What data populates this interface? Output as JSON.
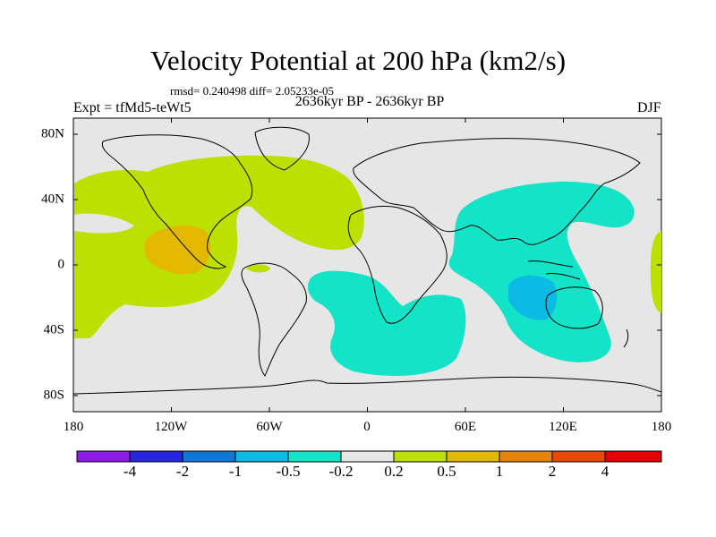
{
  "header": {
    "title": "Velocity Potential at 200 hPa (km2/s)",
    "stats": "rmsd= 0.240498 diff= 2.05233e-05",
    "period": "2636kyr BP - 2636kyr BP",
    "experiment": "Expt = tfMd5-teWt5",
    "season": "DJF"
  },
  "axes": {
    "x_ticks": [
      "180",
      "120W",
      "60W",
      "0",
      "60E",
      "120E",
      "180"
    ],
    "y_ticks": [
      "80N",
      "40N",
      "0",
      "40S",
      "80S"
    ],
    "lon_range": [
      -180,
      180
    ],
    "lat_range": [
      -90,
      90
    ]
  },
  "colorbar": {
    "colors": [
      "#8d1ae6",
      "#2626e0",
      "#0e78d8",
      "#0cbbe3",
      "#13e3c7",
      "#e6e6e6",
      "#bde003",
      "#e2b800",
      "#e6840a",
      "#e64a04",
      "#e60000"
    ],
    "labels": [
      "-4",
      "-2",
      "-1",
      "-0.5",
      "-0.2",
      "0.2",
      "0.5",
      "1",
      "2",
      "4"
    ]
  },
  "colors": {
    "background": "#e6e6e6",
    "positive_fill": "#bde003",
    "positive_strong_fill": "#e2b800",
    "negative_fill": "#13e3c7",
    "negative_strong_fill": "#0cbbe3"
  }
}
